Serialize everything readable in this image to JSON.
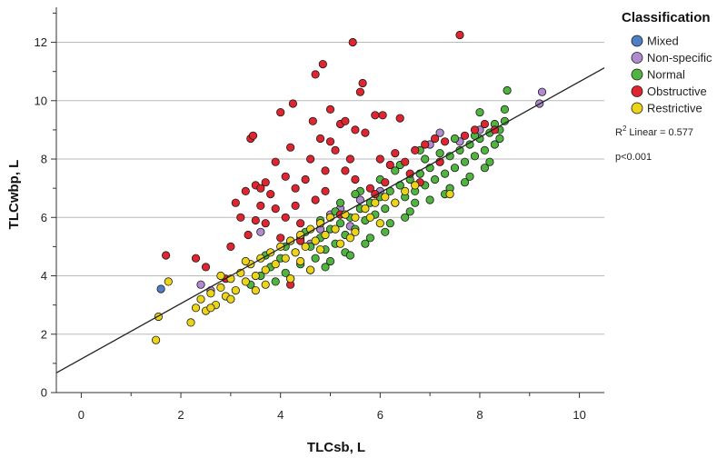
{
  "chart_data": {
    "type": "scatter",
    "xlabel": "TLCsb, L",
    "ylabel": "TLCwbp, L",
    "xlim": [
      -0.5,
      10.5
    ],
    "ylim": [
      0,
      13.2
    ],
    "x_ticks": [
      0,
      2,
      4,
      6,
      8,
      10
    ],
    "y_ticks": [
      0,
      2,
      4,
      6,
      8,
      10,
      12
    ],
    "grid": "horizontal",
    "legend": {
      "title": "Classification",
      "placement": "right",
      "entries": [
        {
          "name": "Mixed",
          "color": "#4f7fc4"
        },
        {
          "name": "Non-specific",
          "color": "#b18ad0"
        },
        {
          "name": "Normal",
          "color": "#4fb53f"
        },
        {
          "name": "Obstructive",
          "color": "#de2530"
        },
        {
          "name": "Restrictive",
          "color": "#ecd419"
        }
      ]
    },
    "fit_line": {
      "label": "Linear",
      "r2_prefix": "R",
      "r2_sup": "2",
      "r2_value": "= 0.577",
      "intercept": 1.15,
      "slope": 0.95
    },
    "annotation_p": "p<0.001",
    "series": [
      {
        "name": "Mixed",
        "color": "#4f7fc4",
        "points": [
          [
            1.6,
            3.55
          ]
        ]
      },
      {
        "name": "Non-specific",
        "color": "#b18ad0",
        "points": [
          [
            2.4,
            3.7
          ],
          [
            2.6,
            3.5
          ],
          [
            3.6,
            5.5
          ],
          [
            4.4,
            5.3
          ],
          [
            4.8,
            5.6
          ],
          [
            5.0,
            6.1
          ],
          [
            5.4,
            5.7
          ],
          [
            5.6,
            6.6
          ],
          [
            6.0,
            6.9
          ],
          [
            6.4,
            7.1
          ],
          [
            6.8,
            7.5
          ],
          [
            7.0,
            8.5
          ],
          [
            7.2,
            8.9
          ],
          [
            7.6,
            8.6
          ],
          [
            7.4,
            7.0
          ],
          [
            8.0,
            9.0
          ],
          [
            9.2,
            9.9
          ],
          [
            9.25,
            10.3
          ],
          [
            5.2,
            6.3
          ],
          [
            4.6,
            5.1
          ]
        ]
      },
      {
        "name": "Normal",
        "color": "#4fb53f",
        "points": [
          [
            3.6,
            4.0
          ],
          [
            3.8,
            4.3
          ],
          [
            4.0,
            4.6
          ],
          [
            4.1,
            4.1
          ],
          [
            4.3,
            4.8
          ],
          [
            4.4,
            4.4
          ],
          [
            4.6,
            5.0
          ],
          [
            4.7,
            4.6
          ],
          [
            4.8,
            5.3
          ],
          [
            4.9,
            4.9
          ],
          [
            5.0,
            5.6
          ],
          [
            5.1,
            5.1
          ],
          [
            5.2,
            5.8
          ],
          [
            5.3,
            5.4
          ],
          [
            5.4,
            6.0
          ],
          [
            5.5,
            5.6
          ],
          [
            5.6,
            6.3
          ],
          [
            5.7,
            5.9
          ],
          [
            5.8,
            6.5
          ],
          [
            5.9,
            6.1
          ],
          [
            6.0,
            6.7
          ],
          [
            6.1,
            6.3
          ],
          [
            6.2,
            6.9
          ],
          [
            6.3,
            6.5
          ],
          [
            6.4,
            7.1
          ],
          [
            6.5,
            6.7
          ],
          [
            6.6,
            7.3
          ],
          [
            6.7,
            6.9
          ],
          [
            6.8,
            7.5
          ],
          [
            6.9,
            7.1
          ],
          [
            7.0,
            7.7
          ],
          [
            7.1,
            7.3
          ],
          [
            7.2,
            7.9
          ],
          [
            7.3,
            7.5
          ],
          [
            7.4,
            8.1
          ],
          [
            7.5,
            7.7
          ],
          [
            7.6,
            8.3
          ],
          [
            7.7,
            7.9
          ],
          [
            7.8,
            8.5
          ],
          [
            7.9,
            8.1
          ],
          [
            8.0,
            8.7
          ],
          [
            8.1,
            8.3
          ],
          [
            8.2,
            8.9
          ],
          [
            8.3,
            8.5
          ],
          [
            8.4,
            9.0
          ],
          [
            8.5,
            9.3
          ],
          [
            8.5,
            9.7
          ],
          [
            8.55,
            10.35
          ],
          [
            8.0,
            9.6
          ],
          [
            7.2,
            8.2
          ],
          [
            6.8,
            8.3
          ],
          [
            6.4,
            7.8
          ],
          [
            6.0,
            7.3
          ],
          [
            5.6,
            6.9
          ],
          [
            5.2,
            6.5
          ],
          [
            4.8,
            5.9
          ],
          [
            4.5,
            5.5
          ],
          [
            3.9,
            3.8
          ],
          [
            4.2,
            3.9
          ],
          [
            5.0,
            4.5
          ],
          [
            5.3,
            4.8
          ],
          [
            5.8,
            5.3
          ],
          [
            6.2,
            5.8
          ],
          [
            6.6,
            6.2
          ],
          [
            7.0,
            6.6
          ],
          [
            7.4,
            7.0
          ],
          [
            7.8,
            7.4
          ],
          [
            8.2,
            7.9
          ],
          [
            4.6,
            4.2
          ],
          [
            3.4,
            3.7
          ],
          [
            5.5,
            6.8
          ],
          [
            6.3,
            7.6
          ],
          [
            6.9,
            8.0
          ],
          [
            7.5,
            8.7
          ],
          [
            8.3,
            9.2
          ],
          [
            5.1,
            6.2
          ],
          [
            4.2,
            5.2
          ],
          [
            3.7,
            4.7
          ],
          [
            4.1,
            5.0
          ],
          [
            6.7,
            6.5
          ],
          [
            7.7,
            7.2
          ],
          [
            8.1,
            7.7
          ],
          [
            5.4,
            4.7
          ],
          [
            6.1,
            5.5
          ],
          [
            7.3,
            6.8
          ],
          [
            4.9,
            4.3
          ],
          [
            5.7,
            5.1
          ],
          [
            6.5,
            6.0
          ],
          [
            7.9,
            8.8
          ],
          [
            8.4,
            8.7
          ]
        ]
      },
      {
        "name": "Obstructive",
        "color": "#de2530",
        "points": [
          [
            1.7,
            4.7
          ],
          [
            2.3,
            4.6
          ],
          [
            2.5,
            4.3
          ],
          [
            2.9,
            3.9
          ],
          [
            3.0,
            5.0
          ],
          [
            3.1,
            6.5
          ],
          [
            3.2,
            6.0
          ],
          [
            3.3,
            6.9
          ],
          [
            3.35,
            5.4
          ],
          [
            3.4,
            8.7
          ],
          [
            3.45,
            8.8
          ],
          [
            3.5,
            7.1
          ],
          [
            3.6,
            6.4
          ],
          [
            3.7,
            5.8
          ],
          [
            3.8,
            6.8
          ],
          [
            3.9,
            7.9
          ],
          [
            4.0,
            9.6
          ],
          [
            4.1,
            6.0
          ],
          [
            4.2,
            8.4
          ],
          [
            4.25,
            9.9
          ],
          [
            4.3,
            7.0
          ],
          [
            4.4,
            5.8
          ],
          [
            4.5,
            7.3
          ],
          [
            4.6,
            8.0
          ],
          [
            4.65,
            9.3
          ],
          [
            4.7,
            10.9
          ],
          [
            4.8,
            8.7
          ],
          [
            4.85,
            11.25
          ],
          [
            4.9,
            7.6
          ],
          [
            5.0,
            9.7
          ],
          [
            5.1,
            8.3
          ],
          [
            5.2,
            9.2
          ],
          [
            5.3,
            9.3
          ],
          [
            5.4,
            8.0
          ],
          [
            5.45,
            12.0
          ],
          [
            5.5,
            9.0
          ],
          [
            5.6,
            10.3
          ],
          [
            5.65,
            10.6
          ],
          [
            5.7,
            8.9
          ],
          [
            5.8,
            7.0
          ],
          [
            5.9,
            9.5
          ],
          [
            6.0,
            8.0
          ],
          [
            6.05,
            9.5
          ],
          [
            6.2,
            7.8
          ],
          [
            6.3,
            8.2
          ],
          [
            6.5,
            7.9
          ],
          [
            6.7,
            8.3
          ],
          [
            6.9,
            8.5
          ],
          [
            7.1,
            8.7
          ],
          [
            7.3,
            8.6
          ],
          [
            7.6,
            12.25
          ],
          [
            7.7,
            8.8
          ],
          [
            7.9,
            9.0
          ],
          [
            8.1,
            9.2
          ],
          [
            8.3,
            9.0
          ],
          [
            6.4,
            9.4
          ],
          [
            6.6,
            7.5
          ],
          [
            4.2,
            3.7
          ],
          [
            4.4,
            5.2
          ],
          [
            3.9,
            6.3
          ],
          [
            4.7,
            6.6
          ],
          [
            5.2,
            6.1
          ],
          [
            5.5,
            7.3
          ],
          [
            5.9,
            6.8
          ],
          [
            6.1,
            7.2
          ],
          [
            6.8,
            7.2
          ],
          [
            7.2,
            7.9
          ],
          [
            4.3,
            6.4
          ],
          [
            3.7,
            7.2
          ],
          [
            4.1,
            7.4
          ],
          [
            5.0,
            8.6
          ],
          [
            5.3,
            7.6
          ],
          [
            4.9,
            6.9
          ],
          [
            3.5,
            5.9
          ],
          [
            3.6,
            7.0
          ],
          [
            4.0,
            5.3
          ]
        ]
      },
      {
        "name": "Restrictive",
        "color": "#ecd419",
        "points": [
          [
            1.5,
            1.8
          ],
          [
            1.55,
            2.6
          ],
          [
            1.75,
            3.8
          ],
          [
            2.2,
            2.4
          ],
          [
            2.3,
            2.9
          ],
          [
            2.4,
            3.2
          ],
          [
            2.5,
            2.8
          ],
          [
            2.6,
            3.4
          ],
          [
            2.7,
            3.0
          ],
          [
            2.8,
            3.6
          ],
          [
            2.9,
            3.3
          ],
          [
            3.0,
            3.9
          ],
          [
            3.1,
            3.5
          ],
          [
            3.2,
            4.1
          ],
          [
            3.3,
            3.8
          ],
          [
            3.4,
            4.4
          ],
          [
            3.5,
            4.0
          ],
          [
            3.6,
            4.6
          ],
          [
            3.7,
            4.2
          ],
          [
            3.8,
            4.8
          ],
          [
            3.9,
            4.4
          ],
          [
            4.0,
            5.0
          ],
          [
            4.1,
            4.6
          ],
          [
            4.2,
            5.2
          ],
          [
            4.3,
            4.8
          ],
          [
            4.4,
            5.4
          ],
          [
            4.5,
            5.0
          ],
          [
            4.6,
            5.6
          ],
          [
            4.7,
            5.2
          ],
          [
            4.8,
            5.8
          ],
          [
            4.9,
            5.4
          ],
          [
            5.0,
            6.0
          ],
          [
            5.1,
            5.6
          ],
          [
            5.3,
            6.1
          ],
          [
            5.5,
            6.0
          ],
          [
            5.7,
            6.3
          ],
          [
            5.9,
            6.5
          ],
          [
            6.1,
            6.7
          ],
          [
            6.3,
            6.5
          ],
          [
            6.5,
            6.9
          ],
          [
            6.7,
            7.1
          ],
          [
            7.4,
            6.8
          ],
          [
            2.8,
            4.0
          ],
          [
            3.0,
            3.2
          ],
          [
            3.3,
            4.5
          ],
          [
            3.7,
            3.7
          ],
          [
            4.2,
            3.9
          ],
          [
            4.6,
            4.2
          ],
          [
            5.2,
            5.1
          ],
          [
            5.5,
            5.5
          ],
          [
            5.8,
            6.0
          ],
          [
            6.0,
            5.8
          ],
          [
            2.6,
            2.9
          ],
          [
            3.5,
            3.5
          ],
          [
            4.4,
            4.5
          ],
          [
            4.8,
            4.9
          ],
          [
            5.4,
            5.3
          ]
        ]
      }
    ]
  }
}
